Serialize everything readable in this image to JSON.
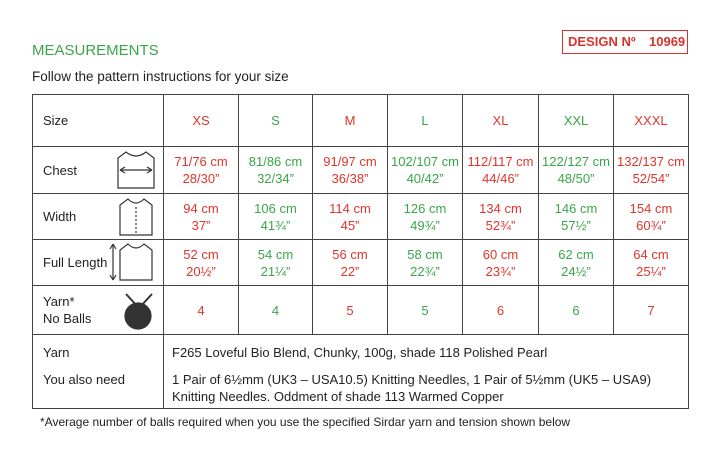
{
  "header": {
    "title": "MEASUREMENTS",
    "design_label": "DESIGN Nº",
    "design_number": "10969",
    "intro": "Follow the pattern instructions for your size"
  },
  "table": {
    "header": [
      "Size",
      "XS",
      "S",
      "M",
      "L",
      "XL",
      "XXL",
      "XXXL"
    ],
    "rows": [
      {
        "label": "Chest",
        "cells": [
          [
            "71/76 cm",
            "28/30”"
          ],
          [
            "81/86 cm",
            "32/34”"
          ],
          [
            "91/97 cm",
            "36/38”"
          ],
          [
            "102/107 cm",
            "40/42”"
          ],
          [
            "112/117 cm",
            "44/46”"
          ],
          [
            "122/127 cm",
            "48/50”"
          ],
          [
            "132/137 cm",
            "52/54”"
          ]
        ]
      },
      {
        "label": "Width",
        "cells": [
          [
            "94 cm",
            "37”"
          ],
          [
            "106 cm",
            "41¾”"
          ],
          [
            "114 cm",
            "45”"
          ],
          [
            "126 cm",
            "49¾”"
          ],
          [
            "134 cm",
            "52¾”"
          ],
          [
            "146 cm",
            "57½”"
          ],
          [
            "154 cm",
            "60¾”"
          ]
        ]
      },
      {
        "label": "Full Length",
        "cells": [
          [
            "52 cm",
            "20½”"
          ],
          [
            "54 cm",
            "21¼”"
          ],
          [
            "56 cm",
            "22”"
          ],
          [
            "58 cm",
            "22¾”"
          ],
          [
            "60 cm",
            "23¾”"
          ],
          [
            "62 cm",
            "24½”"
          ],
          [
            "64 cm",
            "25¼”"
          ]
        ]
      }
    ],
    "balls": {
      "label": [
        "Yarn*",
        "No Balls"
      ],
      "values": [
        4,
        4,
        5,
        5,
        6,
        6,
        7
      ]
    },
    "yarn": {
      "labels": [
        "Yarn",
        "You also need"
      ],
      "yarn": "F265 Loveful Bio Blend, Chunky, 100g, shade 118 Polished Pearl",
      "also_need": [
        "1 Pair of 6½mm (UK3 – USA10.5) Knitting Needles, 1 Pair of 5½mm (UK5 – USA9)",
        "Knitting Needles. Oddment of shade 113 Warmed Copper"
      ]
    }
  },
  "footnote": "*Average number of balls required when you use the specified Sirdar yarn and tension shown below"
}
